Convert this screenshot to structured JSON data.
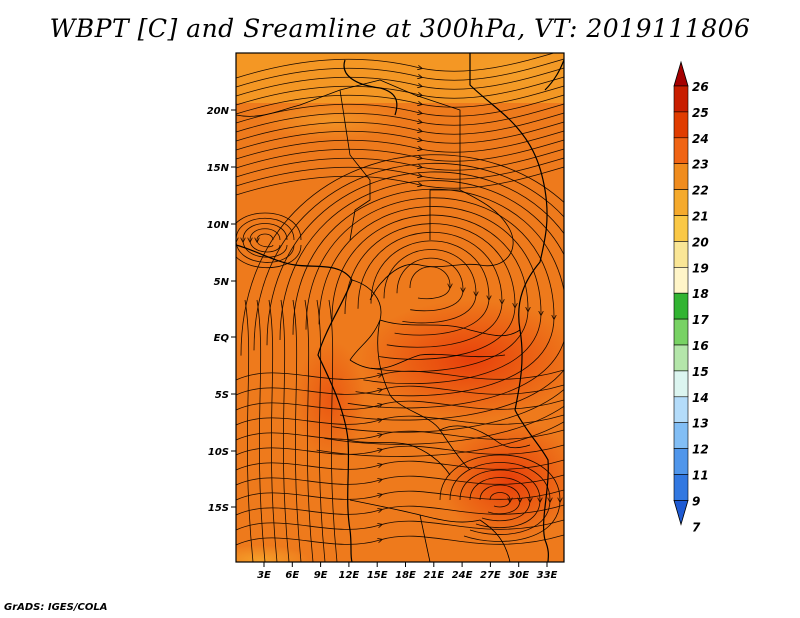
{
  "title": "WBPT [C] and Sreamline at 300hPa, VT: 2019111806",
  "credit": "GrADS: IGES/COLA",
  "map": {
    "lat_labels": [
      "20N",
      "15N",
      "10N",
      "5N",
      "EQ",
      "5S",
      "10S",
      "15S"
    ],
    "lon_labels": [
      "3E",
      "6E",
      "9E",
      "12E",
      "15E",
      "18E",
      "21E",
      "24E",
      "27E",
      "30E",
      "33E"
    ]
  },
  "colorbar": {
    "levels": [
      "26",
      "25",
      "24",
      "23",
      "22",
      "21",
      "20",
      "19",
      "18",
      "17",
      "16",
      "15",
      "14",
      "13",
      "12",
      "11",
      "9",
      "7"
    ],
    "colors": [
      "#a50000",
      "#c81e00",
      "#e03c00",
      "#f06414",
      "#f08c1e",
      "#f5aa2d",
      "#fac846",
      "#fae696",
      "#fff5c8",
      "#32b432",
      "#78d264",
      "#b4e6aa",
      "#dcf5f0",
      "#b4dcfa",
      "#82bef5",
      "#5096eb",
      "#3278e1",
      "#1e5ad2"
    ]
  }
}
